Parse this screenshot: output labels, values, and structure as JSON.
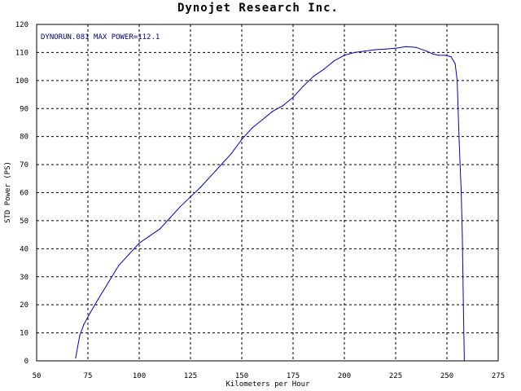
{
  "chart_data": {
    "type": "line",
    "title": "Dynojet Research Inc.",
    "xlabel": "Kilometers per Hour",
    "ylabel": "STD Power (PS)",
    "annotation": "DYNORUN.081 MAX POWER=112.1",
    "xlim": [
      50,
      275
    ],
    "ylim": [
      0,
      120
    ],
    "x_ticks": [
      "50",
      "75",
      "100",
      "125",
      "150",
      "175",
      "200",
      "225",
      "250",
      "275"
    ],
    "y_ticks": [
      "0",
      "10",
      "20",
      "30",
      "40",
      "50",
      "60",
      "70",
      "80",
      "90",
      "100",
      "110",
      "120"
    ],
    "grid": true,
    "series": [
      {
        "color": "#0000c8",
        "x": [
          69,
          70,
          71,
          73,
          76,
          80,
          85,
          90,
          95,
          100,
          105,
          110,
          115,
          120,
          125,
          130,
          135,
          140,
          145,
          150,
          155,
          160,
          165,
          170,
          175,
          180,
          185,
          190,
          195,
          200,
          205,
          210,
          215,
          220,
          225,
          230,
          235,
          240,
          243,
          246,
          249,
          252,
          254,
          255,
          256,
          257,
          257.5,
          258,
          258.5
        ],
        "y": [
          1,
          5,
          9,
          13,
          17,
          22,
          28,
          34,
          38,
          42,
          44.5,
          47,
          51,
          55,
          58.5,
          62,
          66,
          70,
          74,
          79,
          83,
          86,
          89,
          91,
          94,
          98,
          101.5,
          104,
          107,
          109,
          110,
          110.5,
          111,
          111.2,
          111.5,
          112.1,
          111.8,
          110.5,
          109.5,
          109,
          109,
          108.5,
          106,
          100,
          78,
          60,
          45,
          20,
          0
        ]
      }
    ]
  }
}
